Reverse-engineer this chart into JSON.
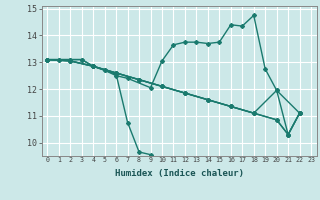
{
  "title": "",
  "xlabel": "Humidex (Indice chaleur)",
  "ylabel": "",
  "bg_color": "#cce8e8",
  "grid_color": "#ffffff",
  "line_color": "#1a7a6e",
  "marker": "D",
  "markersize": 2.0,
  "linewidth": 1.0,
  "xlim": [
    -0.5,
    23.5
  ],
  "ylim": [
    9.5,
    15.1
  ],
  "xticks": [
    0,
    1,
    2,
    3,
    4,
    5,
    6,
    7,
    8,
    9,
    10,
    11,
    12,
    13,
    14,
    15,
    16,
    17,
    18,
    19,
    20,
    21,
    22,
    23
  ],
  "yticks": [
    10,
    11,
    12,
    13,
    14,
    15
  ],
  "series": [
    [
      [
        0,
        13.1
      ],
      [
        1,
        13.1
      ],
      [
        2,
        13.1
      ],
      [
        3,
        13.1
      ],
      [
        4,
        12.85
      ],
      [
        5,
        12.7
      ],
      [
        6,
        12.55
      ],
      [
        7,
        10.75
      ],
      [
        8,
        9.65
      ],
      [
        9,
        9.55
      ]
    ],
    [
      [
        0,
        13.1
      ],
      [
        1,
        13.1
      ],
      [
        2,
        13.1
      ],
      [
        3,
        13.1
      ],
      [
        4,
        12.85
      ],
      [
        5,
        12.7
      ],
      [
        6,
        12.5
      ],
      [
        7,
        12.4
      ],
      [
        9,
        12.05
      ],
      [
        10,
        13.05
      ],
      [
        11,
        13.65
      ],
      [
        12,
        13.75
      ],
      [
        13,
        13.75
      ],
      [
        14,
        13.7
      ],
      [
        15,
        13.75
      ],
      [
        16,
        14.4
      ],
      [
        17,
        14.35
      ],
      [
        18,
        14.75
      ],
      [
        19,
        12.75
      ],
      [
        20,
        11.95
      ],
      [
        21,
        10.3
      ],
      [
        22,
        11.1
      ]
    ],
    [
      [
        0,
        13.1
      ],
      [
        2,
        13.05
      ],
      [
        4,
        12.85
      ],
      [
        6,
        12.6
      ],
      [
        8,
        12.35
      ],
      [
        10,
        12.1
      ],
      [
        12,
        11.85
      ],
      [
        14,
        11.6
      ],
      [
        16,
        11.35
      ],
      [
        18,
        11.1
      ],
      [
        20,
        10.85
      ],
      [
        21,
        10.3
      ],
      [
        22,
        11.1
      ]
    ],
    [
      [
        0,
        13.1
      ],
      [
        2,
        13.05
      ],
      [
        4,
        12.85
      ],
      [
        6,
        12.6
      ],
      [
        8,
        12.35
      ],
      [
        10,
        12.1
      ],
      [
        12,
        11.85
      ],
      [
        14,
        11.6
      ],
      [
        16,
        11.35
      ],
      [
        18,
        11.1
      ],
      [
        20,
        11.95
      ],
      [
        22,
        11.1
      ]
    ],
    [
      [
        0,
        13.1
      ],
      [
        2,
        13.05
      ],
      [
        4,
        12.85
      ],
      [
        6,
        12.6
      ],
      [
        8,
        12.35
      ],
      [
        10,
        12.1
      ],
      [
        12,
        11.85
      ],
      [
        14,
        11.6
      ],
      [
        16,
        11.35
      ],
      [
        18,
        11.1
      ],
      [
        20,
        10.85
      ],
      [
        21,
        10.3
      ],
      [
        22,
        11.1
      ]
    ]
  ]
}
